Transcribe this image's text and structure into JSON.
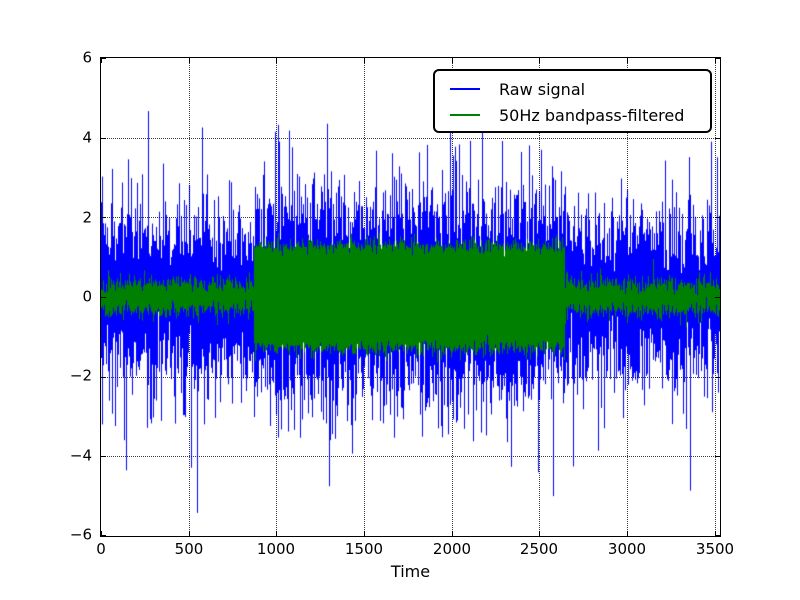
{
  "figure": {
    "background": "#ffffff",
    "frame_color": "#000000"
  },
  "chart_data": {
    "type": "line",
    "title": "",
    "xlabel": "Time",
    "ylabel": "",
    "xlim": [
      0,
      3530
    ],
    "ylim": [
      -6,
      6
    ],
    "xticks": [
      0,
      500,
      1000,
      1500,
      2000,
      2500,
      3000,
      3500
    ],
    "xtick_labels": [
      "0",
      "500",
      "1000",
      "1500",
      "2000",
      "2500",
      "3000",
      "3500"
    ],
    "yticks": [
      6,
      4,
      2,
      0,
      -2,
      -4,
      -6
    ],
    "ytick_labels": [
      "6",
      "4",
      "2",
      "0",
      "−2",
      "−4",
      "−6"
    ],
    "grid": {
      "shown": true,
      "style": "dotted",
      "color": "#3a3a3a"
    },
    "legend": {
      "position": "upper right",
      "background": "#ffffff",
      "border_color": "#000000"
    },
    "series": [
      {
        "name": "Raw signal",
        "color": "#0000ff",
        "kind": "broadband-noise",
        "noise_sigma": 1.0,
        "spike_probability": 0.02,
        "spike_scale": 2.0,
        "dense_band": [
          -2.3,
          2.3
        ],
        "overall_range": [
          -5.0,
          4.35
        ],
        "burst": {
          "t_start": 870,
          "t_end": 2645,
          "sine_amplitude": 1.28
        }
      },
      {
        "name": "50Hz bandpass-filtered",
        "color": "#008000",
        "kind": "narrowband-50hz",
        "burst_noise_sigma": 0.13,
        "segments": [
          {
            "t_start": 0,
            "t_end": 870,
            "amplitude": 0.55
          },
          {
            "t_start": 870,
            "t_end": 2645,
            "amplitude": 1.4
          },
          {
            "t_start": 2645,
            "t_end": 3530,
            "amplitude": 0.55
          }
        ]
      }
    ],
    "notable_spikes": [
      {
        "t": 140,
        "value": -4.35
      },
      {
        "t": 270,
        "value": 4.2
      },
      {
        "t": 990,
        "value": 4.15
      },
      {
        "t": 1290,
        "value": 4.35
      },
      {
        "t": 1300,
        "value": -4.75
      },
      {
        "t": 1990,
        "value": 4.25
      },
      {
        "t": 2170,
        "value": 4.3
      },
      {
        "t": 2490,
        "value": -4.4
      },
      {
        "t": 2575,
        "value": -5.0
      },
      {
        "t": 3480,
        "value": 3.9
      }
    ],
    "samples_per_column": 12,
    "random_seed": 7
  }
}
